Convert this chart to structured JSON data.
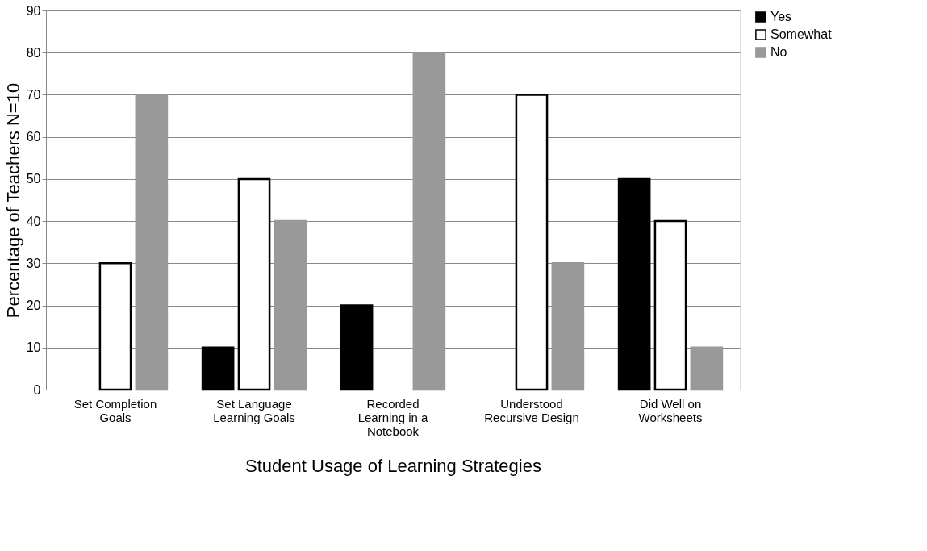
{
  "chart_data": {
    "type": "bar",
    "xlabel": "Student Usage of Learning Strategies",
    "ylabel": "Percentage of Teachers N=10",
    "categories": [
      "Set Completion Goals",
      "Set Language Learning Goals",
      "Recorded Learning in a Notebook",
      "Understood Recursive Design",
      "Did Well on Worksheets"
    ],
    "series": [
      {
        "name": "Yes",
        "color": "#000000",
        "values": [
          0,
          10,
          20,
          0,
          50
        ]
      },
      {
        "name": "Somewhat",
        "color": "#ffffff",
        "values": [
          30,
          50,
          0,
          70,
          40
        ]
      },
      {
        "name": "No",
        "color": "#999999",
        "values": [
          70,
          40,
          80,
          30,
          10
        ]
      }
    ],
    "ylim": [
      0,
      90
    ],
    "yticks": [
      0,
      10,
      20,
      30,
      40,
      50,
      60,
      70,
      80,
      90
    ],
    "grid": "y",
    "legend": "right"
  }
}
